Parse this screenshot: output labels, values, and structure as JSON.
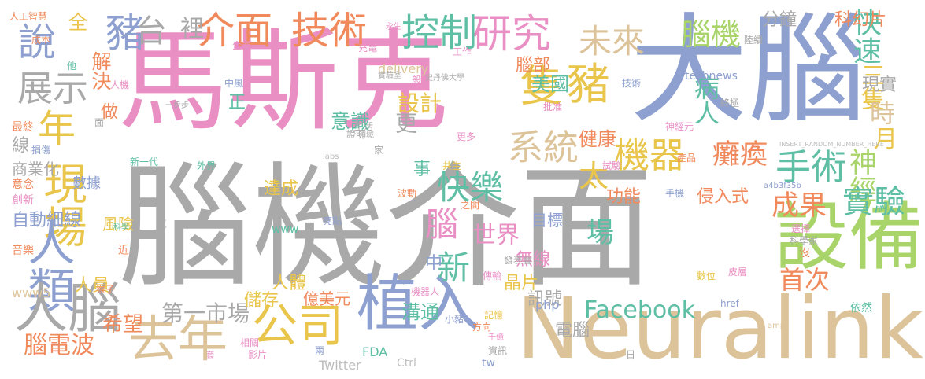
{
  "palette": {
    "gray": "#a9a9a9",
    "pink": "#e98fc4",
    "blue": "#8ea0cf",
    "yellow": "#e9c54b",
    "green": "#a8d46a",
    "tan": "#dcc39a",
    "orange": "#f08a5c",
    "teal": "#5fbfa5",
    "silver": "#bdbdbd"
  },
  "words": [
    {
      "text": "腦機介面",
      "color": "gray"
    },
    {
      "text": "馬斯克",
      "color": "pink"
    },
    {
      "text": "大腦",
      "color": "blue"
    },
    {
      "text": "Neuralink",
      "color": "tan"
    },
    {
      "text": "設備",
      "color": "green"
    },
    {
      "text": "植入",
      "color": "blue"
    },
    {
      "text": "現場",
      "color": "yellow"
    },
    {
      "text": "人類",
      "color": "blue"
    },
    {
      "text": "人腦",
      "color": "gray"
    },
    {
      "text": "去年",
      "color": "tan"
    },
    {
      "text": "公司",
      "color": "yellow"
    },
    {
      "text": "隻",
      "color": "yellow"
    },
    {
      "text": "豬",
      "color": "yellow"
    },
    {
      "text": "介面",
      "color": "orange"
    },
    {
      "text": "技術",
      "color": "orange"
    },
    {
      "text": "研究",
      "color": "pink"
    },
    {
      "text": "控制",
      "color": "teal"
    },
    {
      "text": "豬",
      "color": "blue"
    },
    {
      "text": "年",
      "color": "yellow"
    },
    {
      "text": "說",
      "color": "blue"
    },
    {
      "text": "展示",
      "color": "gray"
    },
    {
      "text": "未來",
      "color": "tan"
    },
    {
      "text": "腦機",
      "color": "green"
    },
    {
      "text": "快速",
      "color": "teal"
    },
    {
      "text": "三隻",
      "color": "yellow"
    },
    {
      "text": "時",
      "color": "tan"
    },
    {
      "text": "月",
      "color": "yellow"
    },
    {
      "text": "系統",
      "color": "tan"
    },
    {
      "text": "機器",
      "color": "yellow"
    },
    {
      "text": "手術",
      "color": "teal"
    },
    {
      "text": "神經",
      "color": "green"
    },
    {
      "text": "實驗",
      "color": "teal"
    },
    {
      "text": "成果",
      "color": "orange"
    },
    {
      "text": "癱瘓",
      "color": "orange"
    },
    {
      "text": "病人",
      "color": "teal"
    },
    {
      "text": "快樂",
      "color": "teal"
    },
    {
      "text": "太",
      "color": "yellow"
    },
    {
      "text": "腦",
      "color": "pink"
    },
    {
      "text": "新",
      "color": "teal"
    },
    {
      "text": "世界",
      "color": "pink"
    },
    {
      "text": "場",
      "color": "teal"
    },
    {
      "text": "Facebook",
      "color": "teal"
    },
    {
      "text": "首次",
      "color": "orange"
    },
    {
      "text": "第一市場",
      "color": "gray"
    },
    {
      "text": "希望",
      "color": "orange"
    },
    {
      "text": "腦電波",
      "color": "orange"
    },
    {
      "text": "人員",
      "color": "yellow"
    },
    {
      "text": "儲存",
      "color": "yellow"
    },
    {
      "text": "億美元",
      "color": "orange"
    },
    {
      "text": "溝通",
      "color": "teal"
    },
    {
      "text": "電腦",
      "color": "gray"
    },
    {
      "text": "自動細線",
      "color": "blue"
    },
    {
      "text": "裡",
      "color": "gray"
    },
    {
      "text": "台",
      "color": "gray"
    },
    {
      "text": "設計",
      "color": "yellow"
    },
    {
      "text": "意識",
      "color": "teal"
    },
    {
      "text": "更",
      "color": "gray"
    },
    {
      "text": "美國",
      "color": "teal"
    },
    {
      "text": "腦部",
      "color": "orange"
    },
    {
      "text": "分鐘",
      "color": "gray"
    },
    {
      "text": "科幻片",
      "color": "orange"
    },
    {
      "text": "現實",
      "color": "gray"
    },
    {
      "text": "晶片",
      "color": "yellow"
    },
    {
      "text": "人體",
      "color": "yellow"
    },
    {
      "text": "中",
      "color": "blue"
    },
    {
      "text": "全",
      "color": "yellow"
    },
    {
      "text": "解決",
      "color": "orange"
    },
    {
      "text": "正",
      "color": "teal"
    },
    {
      "text": "做",
      "color": "orange"
    },
    {
      "text": "線",
      "color": "gray"
    },
    {
      "text": "商業化",
      "color": "gray"
    },
    {
      "text": "數據",
      "color": "blue"
    },
    {
      "text": "風險",
      "color": "yellow"
    },
    {
      "text": "達成",
      "color": "yellow"
    },
    {
      "text": "功能",
      "color": "orange"
    },
    {
      "text": "侵入式",
      "color": "orange"
    },
    {
      "text": "目標",
      "color": "blue"
    },
    {
      "text": "無線",
      "color": "pink"
    },
    {
      "text": "訊號",
      "color": "gray"
    },
    {
      "text": "健康",
      "color": "orange"
    },
    {
      "text": "事",
      "color": "teal"
    },
    {
      "text": "Twitter",
      "color": "silver"
    },
    {
      "text": "delivery",
      "color": "tan"
    },
    {
      "text": "technews",
      "color": "blue"
    },
    {
      "text": "www",
      "color": "teal"
    },
    {
      "text": "www5",
      "color": "tan"
    },
    {
      "text": "php",
      "color": "blue"
    },
    {
      "text": "FDA",
      "color": "teal"
    },
    {
      "text": "Ctrl",
      "color": "silver"
    },
    {
      "text": "tw",
      "color": "blue"
    },
    {
      "text": "人工智慧",
      "color": "orange"
    },
    {
      "text": "成本",
      "color": "orange"
    },
    {
      "text": "企業",
      "color": "pink"
    },
    {
      "text": "充電",
      "color": "pink"
    },
    {
      "text": "工作",
      "color": "pink"
    },
    {
      "text": "永生",
      "color": "pink"
    },
    {
      "text": "陸續",
      "color": "gray"
    },
    {
      "text": "實驗室",
      "color": "gray"
    },
    {
      "text": "史丹佛大學",
      "color": "gray"
    },
    {
      "text": "中風",
      "color": "blue"
    },
    {
      "text": "人機",
      "color": "pink"
    },
    {
      "text": "技術",
      "color": "blue"
    },
    {
      "text": "終極",
      "color": "gray"
    },
    {
      "text": "一步步",
      "color": "gray"
    },
    {
      "text": "生活",
      "color": "gray"
    },
    {
      "text": "批准",
      "color": "pink"
    },
    {
      "text": "神經元",
      "color": "pink"
    },
    {
      "text": "領域",
      "color": "gray"
    },
    {
      "text": "更多",
      "color": "pink"
    },
    {
      "text": "損傷",
      "color": "blue"
    },
    {
      "text": "最終",
      "color": "orange"
    },
    {
      "text": "證明",
      "color": "gray"
    },
    {
      "text": "家",
      "color": "gray"
    },
    {
      "text": "產品",
      "color": "orange"
    },
    {
      "text": "試驗",
      "color": "pink"
    },
    {
      "text": "新一代",
      "color": "teal"
    },
    {
      "text": "外界",
      "color": "teal"
    },
    {
      "text": "labs",
      "color": "silver"
    },
    {
      "text": "共生",
      "color": "yellow"
    },
    {
      "text": "意念",
      "color": "orange"
    },
    {
      "text": "創新",
      "color": "pink"
    },
    {
      "text": "波動",
      "color": "orange"
    },
    {
      "text": "之間",
      "color": "orange"
    },
    {
      "text": "手機",
      "color": "blue"
    },
    {
      "text": "亮點",
      "color": "blue"
    },
    {
      "text": "發表會",
      "color": "gray"
    },
    {
      "text": "音樂",
      "color": "orange"
    },
    {
      "text": "位",
      "color": "gray"
    },
    {
      "text": "近",
      "color": "orange"
    },
    {
      "text": "選擇",
      "color": "pink"
    },
    {
      "text": "科學家",
      "color": "gray"
    },
    {
      "text": "沒",
      "color": "orange"
    },
    {
      "text": "猴子",
      "color": "orange"
    },
    {
      "text": "傳輸",
      "color": "pink"
    },
    {
      "text": "記憶",
      "color": "yellow"
    },
    {
      "text": "皮層",
      "color": "pink"
    },
    {
      "text": "數位",
      "color": "yellow"
    },
    {
      "text": "依然",
      "color": "teal"
    },
    {
      "text": "機器人",
      "color": "pink"
    },
    {
      "text": "小豬",
      "color": "blue"
    },
    {
      "text": "方向",
      "color": "orange"
    },
    {
      "text": "千億",
      "color": "pink"
    },
    {
      "text": "資訊",
      "color": "gray"
    },
    {
      "text": "相關",
      "color": "pink"
    },
    {
      "text": "影片",
      "color": "pink"
    },
    {
      "text": "兩",
      "color": "blue"
    },
    {
      "text": "套",
      "color": "pink"
    },
    {
      "text": "href",
      "color": "blue"
    },
    {
      "text": "amp",
      "color": "tan"
    },
    {
      "text": "a4b3f35b",
      "color": "blue"
    },
    {
      "text": "INSERT_RANDOM_NUMBER_HERE",
      "color": "silver"
    },
    {
      "text": "科學",
      "color": "teal"
    },
    {
      "text": "他",
      "color": "teal"
    },
    {
      "text": "面",
      "color": "gray"
    },
    {
      "text": "般",
      "color": "pink"
    },
    {
      "text": "日",
      "color": "gray"
    }
  ]
}
